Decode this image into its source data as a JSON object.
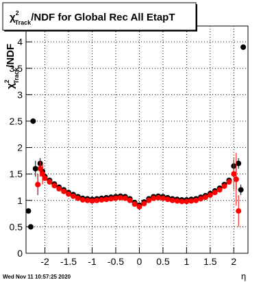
{
  "chart_data": {
    "type": "scatter",
    "title": {
      "symbol": "χ",
      "sup": "2",
      "sub": "Track",
      "rest": "/NDF for Global Rec All EtapT"
    },
    "y_label": {
      "symbol": "χ",
      "sup": "2",
      "sub": "Track",
      "rest": "/NDF"
    },
    "x_label": "η",
    "xlim": [
      -2.4,
      2.3
    ],
    "ylim": [
      0,
      4.3
    ],
    "xticks": [
      -2,
      -1.5,
      -1,
      -0.5,
      0,
      0.5,
      1,
      1.5,
      2
    ],
    "yticks": [
      0,
      0.5,
      1,
      1.5,
      2,
      2.5,
      3,
      3.5,
      4
    ],
    "grid": true,
    "series": [
      {
        "color": "#000000",
        "x": [
          -2.35,
          -2.3,
          -2.25,
          -2.2,
          -2.15,
          -2.1,
          -2.05,
          -2.0,
          -1.9,
          -1.8,
          -1.7,
          -1.6,
          -1.5,
          -1.4,
          -1.3,
          -1.2,
          -1.1,
          -1.0,
          -0.9,
          -0.8,
          -0.7,
          -0.6,
          -0.5,
          -0.4,
          -0.3,
          -0.2,
          -0.1,
          0,
          0.1,
          0.2,
          0.3,
          0.4,
          0.5,
          0.6,
          0.7,
          0.8,
          0.9,
          1.0,
          1.1,
          1.2,
          1.3,
          1.4,
          1.5,
          1.6,
          1.7,
          1.8,
          1.9,
          2.0,
          2.05,
          2.1,
          2.15,
          2.2
        ],
        "values": [
          0.8,
          0.5,
          2.5,
          1.6,
          1.3,
          1.7,
          1.55,
          1.45,
          1.38,
          1.31,
          1.25,
          1.2,
          1.15,
          1.11,
          1.07,
          1.04,
          1.03,
          1.02,
          1.03,
          1.04,
          1.05,
          1.06,
          1.07,
          1.08,
          1.07,
          1.03,
          0.96,
          0.91,
          0.97,
          1.03,
          1.07,
          1.08,
          1.07,
          1.05,
          1.03,
          1.02,
          1.01,
          1.01,
          1.02,
          1.03,
          1.06,
          1.09,
          1.13,
          1.18,
          1.23,
          1.3,
          1.38,
          1.65,
          1.4,
          1.7,
          1.2,
          3.9
        ],
        "errors": [
          0.05,
          0.05,
          0.05,
          0.15,
          0.2,
          0.1,
          0.1,
          0.02,
          0.02,
          0.02,
          0.02,
          0.02,
          0.02,
          0.02,
          0.02,
          0.02,
          0.02,
          0.02,
          0.02,
          0.02,
          0.02,
          0.02,
          0.02,
          0.02,
          0.02,
          0.02,
          0.02,
          0.02,
          0.02,
          0.02,
          0.02,
          0.02,
          0.02,
          0.02,
          0.02,
          0.02,
          0.02,
          0.02,
          0.02,
          0.02,
          0.02,
          0.02,
          0.02,
          0.02,
          0.02,
          0.02,
          0.02,
          0.1,
          0.2,
          0.1,
          0.1,
          0.05
        ]
      },
      {
        "color": "#ff0000",
        "x": [
          -2.15,
          -2.1,
          -2.05,
          -2.0,
          -1.9,
          -1.8,
          -1.7,
          -1.6,
          -1.5,
          -1.4,
          -1.3,
          -1.2,
          -1.1,
          -1.0,
          -0.9,
          -0.8,
          -0.7,
          -0.6,
          -0.5,
          -0.4,
          -0.3,
          -0.2,
          -0.1,
          0,
          0.1,
          0.2,
          0.3,
          0.4,
          0.5,
          0.6,
          0.7,
          0.8,
          0.9,
          1.0,
          1.1,
          1.2,
          1.3,
          1.4,
          1.5,
          1.6,
          1.7,
          1.8,
          1.9,
          2.0,
          2.05,
          2.1
        ],
        "values": [
          1.3,
          1.6,
          1.5,
          1.42,
          1.35,
          1.28,
          1.22,
          1.17,
          1.12,
          1.08,
          1.04,
          1.01,
          1.0,
          0.99,
          1.0,
          1.01,
          1.02,
          1.03,
          1.04,
          1.05,
          1.04,
          1.0,
          0.93,
          0.88,
          0.94,
          1.0,
          1.04,
          1.05,
          1.04,
          1.02,
          1.0,
          0.99,
          0.98,
          0.98,
          0.99,
          1.0,
          1.03,
          1.06,
          1.1,
          1.15,
          1.2,
          1.27,
          1.35,
          1.5,
          1.4,
          0.8
        ],
        "errors": [
          0.2,
          0.15,
          0.2,
          0.02,
          0.02,
          0.02,
          0.02,
          0.02,
          0.02,
          0.02,
          0.02,
          0.02,
          0.02,
          0.02,
          0.02,
          0.02,
          0.02,
          0.02,
          0.02,
          0.02,
          0.02,
          0.02,
          0.02,
          0.02,
          0.02,
          0.02,
          0.02,
          0.02,
          0.02,
          0.02,
          0.02,
          0.02,
          0.02,
          0.02,
          0.02,
          0.02,
          0.02,
          0.02,
          0.02,
          0.02,
          0.02,
          0.02,
          0.02,
          0.3,
          0.5,
          0.3
        ]
      }
    ]
  },
  "footer": "Wed Nov 11 10:57:25 2020"
}
